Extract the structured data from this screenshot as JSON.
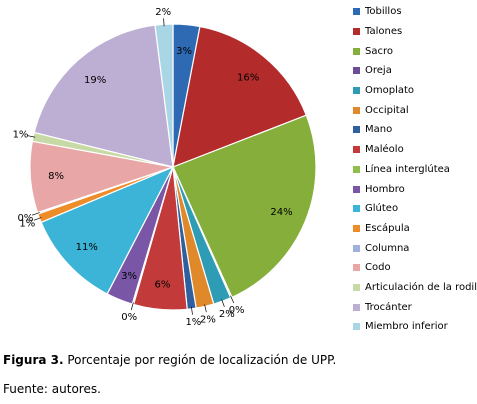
{
  "chart_data": {
    "type": "pie",
    "categories": [
      "Tobillos",
      "Talones",
      "Sacro",
      "Oreja",
      "Omoplato",
      "Occipital",
      "Mano",
      "Maléolo",
      "Línea interglútea",
      "Hombro",
      "Glúteo",
      "Escápula",
      "Columna",
      "Codo",
      "Articulación de la rodilla",
      "Trocánter",
      "Miembro inferior"
    ],
    "values": [
      3,
      16,
      24,
      0,
      2,
      2,
      1,
      6,
      0,
      3,
      11,
      1,
      0,
      8,
      1,
      19,
      2
    ],
    "data_labels": [
      "3%",
      "16%",
      "24%",
      "0%",
      "2%",
      "2%",
      "1%",
      "6%",
      "0%",
      "3%",
      "11%",
      "1%",
      "0%",
      "8%",
      "1%",
      "19%",
      "2%"
    ],
    "colors": [
      "#2E6AB4",
      "#B42B2B",
      "#86AE3A",
      "#6C4C94",
      "#2E9CB4",
      "#E0892A",
      "#2F5F9E",
      "#C23A3A",
      "#8FBE4A",
      "#7A56A6",
      "#3CB4D8",
      "#EE8C2A",
      "#9DB1DA",
      "#E8A6A6",
      "#C7D9A4",
      "#BDAFD4",
      "#A8D6E4"
    ],
    "legend_position": "right",
    "title": ""
  },
  "caption": {
    "label": "Figura 3.",
    "text": " Porcentaje por región de localización de UPP."
  },
  "source": "Fuente: autores."
}
